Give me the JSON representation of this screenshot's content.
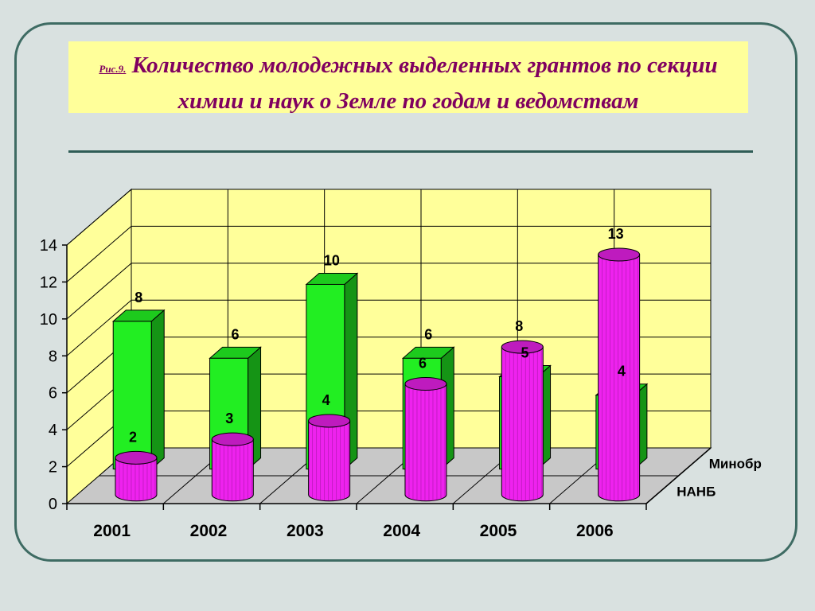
{
  "slide": {
    "figure_label": "Рис.9.",
    "title": "Количество молодежных выделенных грантов по секции химии и наук о Земле по годам и ведомствам"
  },
  "chart_data": {
    "type": "bar",
    "style": "3d-grouped",
    "categories": [
      "2001",
      "2002",
      "2003",
      "2004",
      "2005",
      "2006"
    ],
    "series": [
      {
        "name": "Минобр",
        "values": [
          8,
          6,
          10,
          6,
          5,
          4
        ],
        "color": "#22ee22",
        "shape": "box",
        "row": "back"
      },
      {
        "name": "НАНБ",
        "values": [
          2,
          3,
          4,
          6,
          8,
          13
        ],
        "color": "#ee22ee",
        "shape": "cylinder",
        "row": "front"
      }
    ],
    "ylim": [
      0,
      14
    ],
    "yticks": [
      0,
      2,
      4,
      6,
      8,
      10,
      12,
      14
    ],
    "grid": true,
    "colors": {
      "back_wall": "#ffff9a",
      "floor": "#c8c8c8",
      "gridline": "#000000"
    }
  }
}
